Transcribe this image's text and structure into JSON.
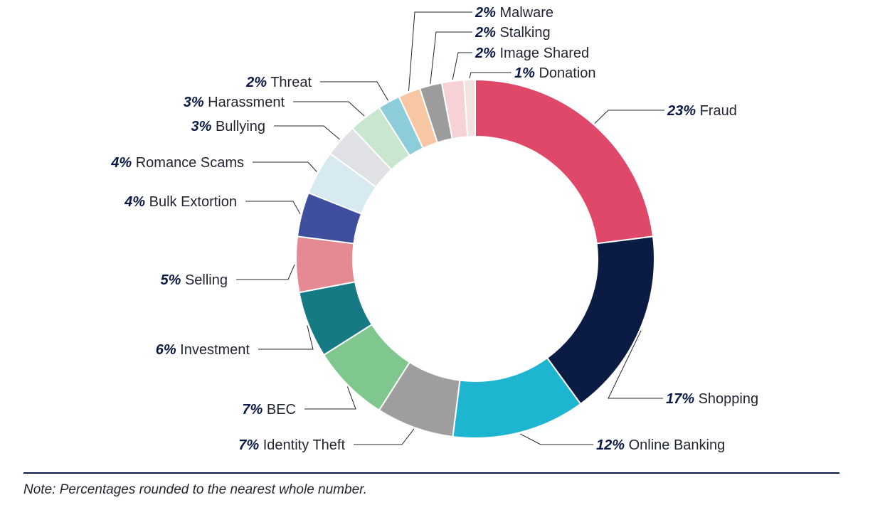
{
  "chart_data": {
    "type": "pie",
    "donut": true,
    "start": "top, clockwise",
    "slices": [
      {
        "pct": "23%",
        "label": "Fraud",
        "value": 23,
        "color": "#e0486a"
      },
      {
        "pct": "17%",
        "label": "Shopping",
        "value": 17,
        "color": "#0b1c44"
      },
      {
        "pct": "12%",
        "label": "Online Banking",
        "value": 12,
        "color": "#1eb5d0"
      },
      {
        "pct": "7%",
        "label": "Identity Theft",
        "value": 7,
        "color": "#9e9e9e"
      },
      {
        "pct": "7%",
        "label": "BEC",
        "value": 7,
        "color": "#7fc78e"
      },
      {
        "pct": "6%",
        "label": "Investment",
        "value": 6,
        "color": "#167a85"
      },
      {
        "pct": "5%",
        "label": "Selling",
        "value": 5,
        "color": "#e58a93"
      },
      {
        "pct": "4%",
        "label": "Bulk Extortion",
        "value": 4,
        "color": "#3f4f9e"
      },
      {
        "pct": "4%",
        "label": "Romance Scams",
        "value": 4,
        "color": "#d7eaf2"
      },
      {
        "pct": "3%",
        "label": "Bullying",
        "value": 3,
        "color": "#e0e1e4"
      },
      {
        "pct": "3%",
        "label": "Harassment",
        "value": 3,
        "color": "#c9e6cf"
      },
      {
        "pct": "2%",
        "label": "Threat",
        "value": 2,
        "color": "#8ccdd9"
      },
      {
        "pct": "2%",
        "label": "Malware",
        "value": 2,
        "color": "#f7c7a3"
      },
      {
        "pct": "2%",
        "label": "Stalking",
        "value": 2,
        "color": "#9c9c9c"
      },
      {
        "pct": "2%",
        "label": "Image Shared",
        "value": 2,
        "color": "#f6d2d6"
      },
      {
        "pct": "1%",
        "label": "Donation",
        "value": 1,
        "color": "#f4e1e1"
      }
    ]
  },
  "note": "Note: Percentages rounded to the nearest whole number."
}
